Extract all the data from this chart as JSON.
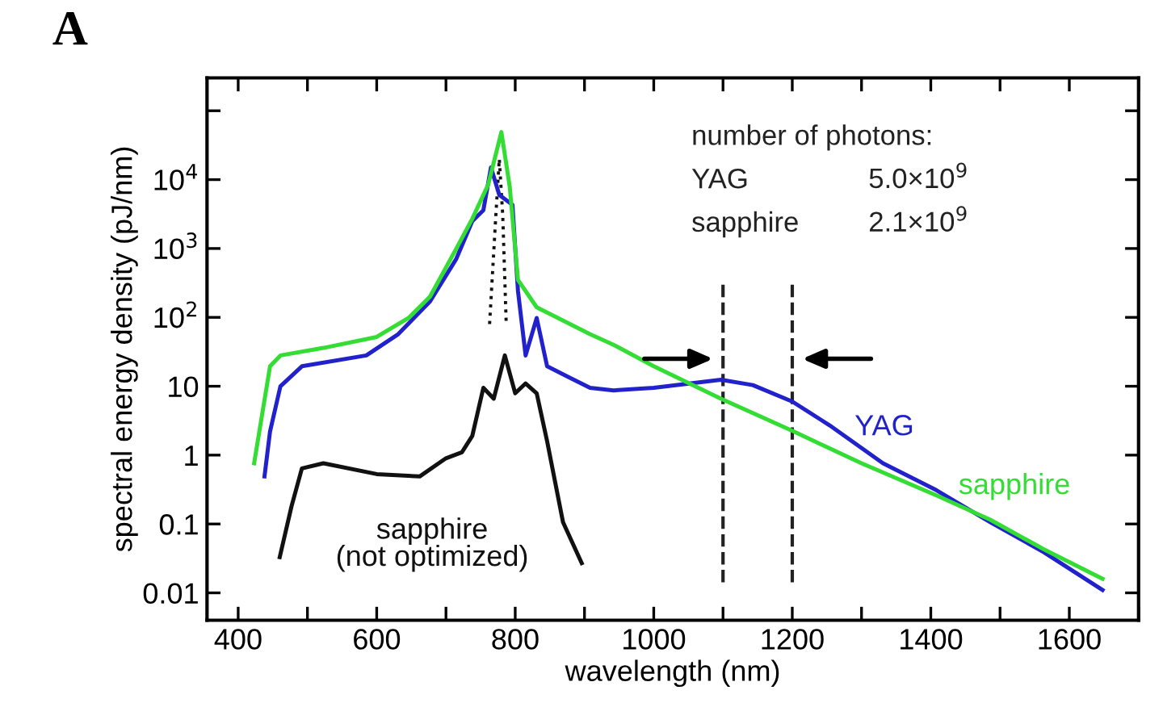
{
  "chart_data": {
    "type": "line",
    "title": "A",
    "xlabel": "wavelength (nm)",
    "ylabel": "spectral energy density (pJ/nm)",
    "log": "y",
    "grid": false,
    "marker": "none",
    "xlim": [
      355,
      1700
    ],
    "xticks": [
      400,
      {
        "value": 500,
        "label": null
      },
      600,
      {
        "value": 700,
        "label": null
      },
      800,
      {
        "value": 900,
        "label": null
      },
      1000,
      {
        "value": 1100,
        "label": null
      },
      1200,
      {
        "value": 1300,
        "label": null
      },
      1400,
      {
        "value": 1500,
        "label": null
      },
      1600,
      {
        "value": 1700,
        "label": null
      }
    ],
    "ylim": [
      0.004,
      300000
    ],
    "yticks": [
      {
        "value": 0.01,
        "label": "0.01"
      },
      {
        "value": 0.1,
        "label": "0.1"
      },
      {
        "value": 1,
        "label": "1"
      },
      {
        "value": 10,
        "label": "10"
      },
      {
        "value": 100,
        "label": "10$^{2}$"
      },
      {
        "value": 1000,
        "label": "10$^{3}$"
      },
      {
        "value": 10000,
        "label": "10$^{4}$"
      },
      {
        "value": 100000,
        "label": null
      }
    ],
    "series": [
      {
        "name": "sapphire",
        "color": "#33dd33",
        "x": [
          423,
          446,
          461,
          523,
          600,
          646,
          677,
          715,
          738,
          761,
          780,
          792,
          804,
          831,
          908,
          942,
          1000,
          1097,
          1200,
          1300,
          1408,
          1486,
          1563,
          1648
        ],
        "values": [
          0.76,
          19.5,
          28,
          36,
          52,
          98,
          200,
          1000,
          2700,
          8500,
          49000,
          8000,
          350,
          140,
          57,
          40,
          19.5,
          6.6,
          2.25,
          0.76,
          0.26,
          0.115,
          0.043,
          0.016
        ]
      },
      {
        "name": "YAG",
        "color": "#2222cc",
        "x": [
          438,
          446,
          461,
          492,
          585,
          631,
          677,
          715,
          738,
          754,
          765,
          777,
          796,
          804,
          815,
          831,
          846,
          877,
          908,
          942,
          1000,
          1097,
          1143,
          1200,
          1254,
          1331,
          1408,
          1486,
          1563,
          1648
        ],
        "values": [
          0.49,
          2.2,
          10,
          19.5,
          28,
          57,
          170,
          710,
          2500,
          3600,
          15000,
          6000,
          4300,
          240,
          28,
          98,
          19.5,
          13.6,
          9.5,
          8.7,
          9.5,
          12.4,
          10.4,
          6,
          2.7,
          0.76,
          0.31,
          0.106,
          0.039,
          0.011
        ]
      },
      {
        "name": "sapphire\n(not optimized)",
        "color": "#111111",
        "x": [
          460,
          477,
          492,
          523,
          600,
          662,
          700,
          723,
          738,
          754,
          769,
          785,
          800,
          815,
          831,
          846,
          869,
          896
        ],
        "values": [
          0.033,
          0.18,
          0.64,
          0.76,
          0.53,
          0.49,
          0.9,
          1.1,
          1.9,
          9.5,
          6.6,
          28,
          7.9,
          11,
          7.9,
          1.6,
          0.106,
          0.027
        ]
      },
      {
        "color": "#111111",
        "line_style": "dotted",
        "x": [
          763,
          772,
          777,
          782,
          787
        ],
        "values": [
          80,
          3000,
          20000,
          3000,
          80
        ]
      }
    ],
    "ref_lines": [
      {
        "axis": "x",
        "value": 1100,
        "color": "#222222",
        "line_style": "dashed"
      },
      {
        "axis": "x",
        "value": 1200,
        "color": "#222222",
        "line_style": "dashed"
      }
    ],
    "annotations": [
      "number of photons:",
      "YAG",
      "5.0×10$^{9}$",
      "sapphire",
      "2.1×10$^{9}$"
    ]
  }
}
